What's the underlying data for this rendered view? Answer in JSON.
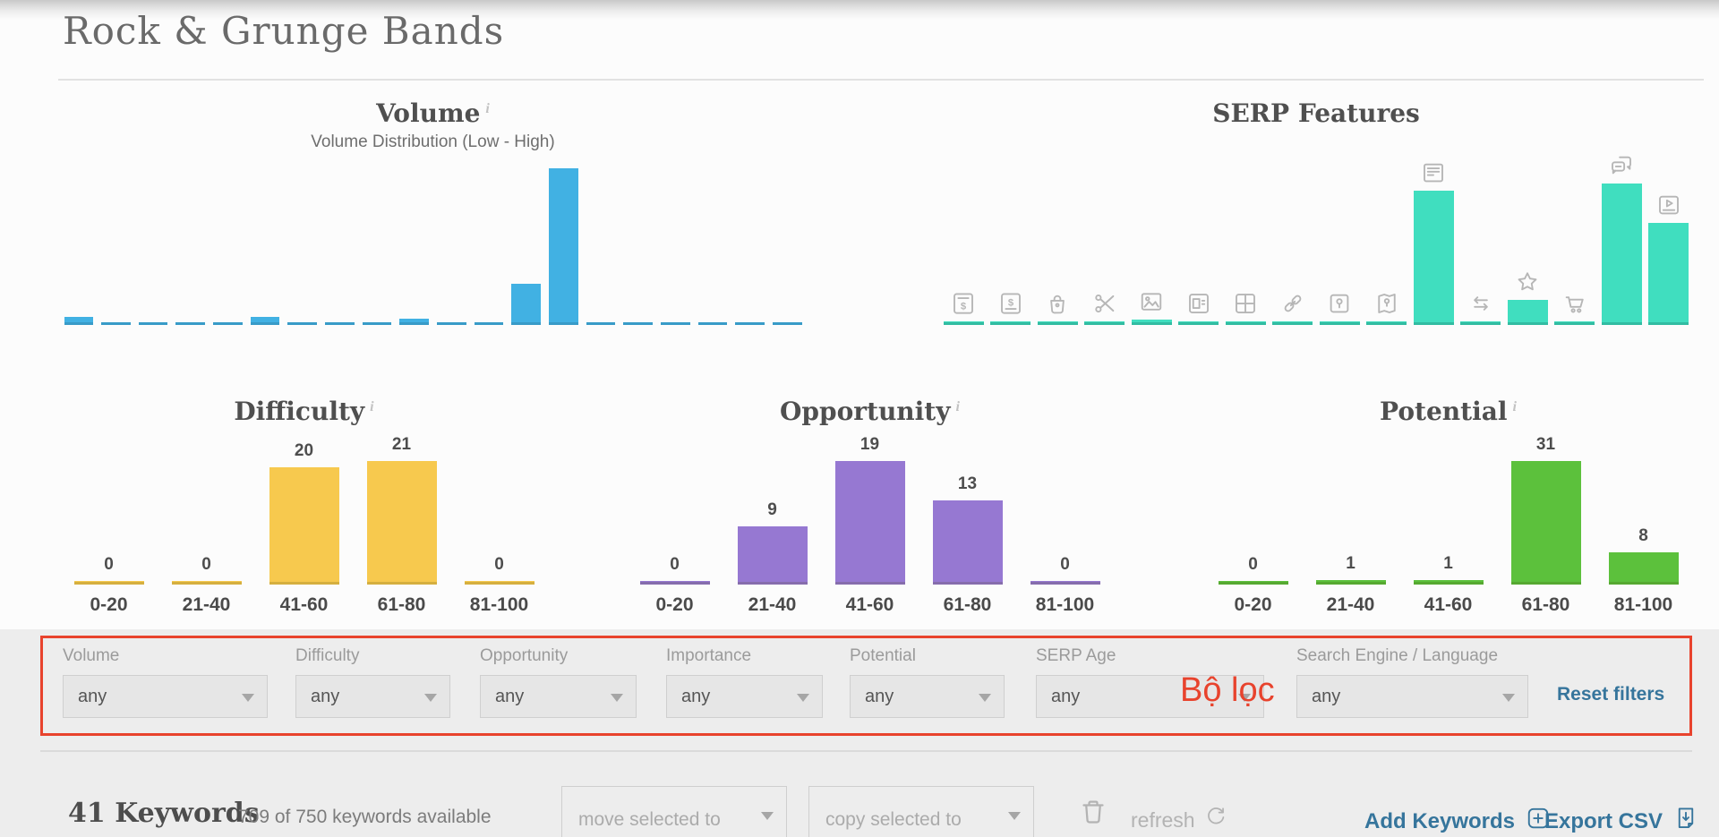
{
  "page": {
    "title": "Rock & Grunge Bands"
  },
  "chart_data": [
    {
      "type": "bar",
      "title": "Volume",
      "subtitle": "Volume Distribution (Low - High)",
      "xlabel": "volume buckets low to high (20 buckets, unlabeled)",
      "values_pct_of_max": [
        5,
        1,
        1,
        1,
        1,
        5,
        1,
        1,
        1,
        4,
        1,
        1,
        26,
        100,
        1,
        1,
        1,
        1,
        1,
        1
      ],
      "color": "#41b1e3",
      "grid": false,
      "has_info_icon": true
    },
    {
      "type": "bar",
      "title": "SERP Features",
      "categories": [
        "ads-top",
        "ads-bottom",
        "shopping-bag",
        "scissors",
        "image",
        "knowledge-panel",
        "grid",
        "link",
        "map-pin-card",
        "map",
        "news",
        "swap-arrows",
        "star",
        "cart",
        "chat-bubbles",
        "video"
      ],
      "values_pct_of_max": [
        1,
        1,
        1,
        1,
        4,
        1,
        1,
        1,
        1,
        1,
        95,
        1,
        18,
        1,
        100,
        72
      ],
      "color": "#40debf",
      "grid": false,
      "has_info_icon": false
    },
    {
      "type": "bar",
      "title": "Difficulty",
      "categories": [
        "0-20",
        "21-40",
        "41-60",
        "61-80",
        "81-100"
      ],
      "values": [
        0,
        0,
        20,
        21,
        0
      ],
      "color": "#f7c94e",
      "grid": false,
      "has_info_icon": true
    },
    {
      "type": "bar",
      "title": "Opportunity",
      "categories": [
        "0-20",
        "21-40",
        "41-60",
        "61-80",
        "81-100"
      ],
      "values": [
        0,
        9,
        19,
        13,
        0
      ],
      "color": "#9678d2",
      "grid": false,
      "has_info_icon": true
    },
    {
      "type": "bar",
      "title": "Potential",
      "categories": [
        "0-20",
        "21-40",
        "41-60",
        "61-80",
        "81-100"
      ],
      "values": [
        0,
        1,
        1,
        31,
        8
      ],
      "color": "#5cc13c",
      "grid": false,
      "has_info_icon": true
    }
  ],
  "filters": {
    "items": [
      {
        "label": "Volume",
        "value": "any"
      },
      {
        "label": "Difficulty",
        "value": "any"
      },
      {
        "label": "Opportunity",
        "value": "any"
      },
      {
        "label": "Importance",
        "value": "any"
      },
      {
        "label": "Potential",
        "value": "any"
      },
      {
        "label": "SERP Age",
        "value": "any"
      },
      {
        "label": "Search Engine / Language",
        "value": "any"
      }
    ],
    "reset_label": "Reset filters",
    "annotation_text": "Bộ lọc",
    "annotation_color": "#e8432d"
  },
  "toolbar": {
    "keyword_count": "41 Keywords",
    "availability": "709 of 750 keywords available",
    "move_label": "move selected to",
    "copy_label": "copy selected to",
    "refresh_label": "refresh",
    "add_label": "Add Keywords",
    "export_label": "Export CSV",
    "accent_color": "#36759c"
  }
}
